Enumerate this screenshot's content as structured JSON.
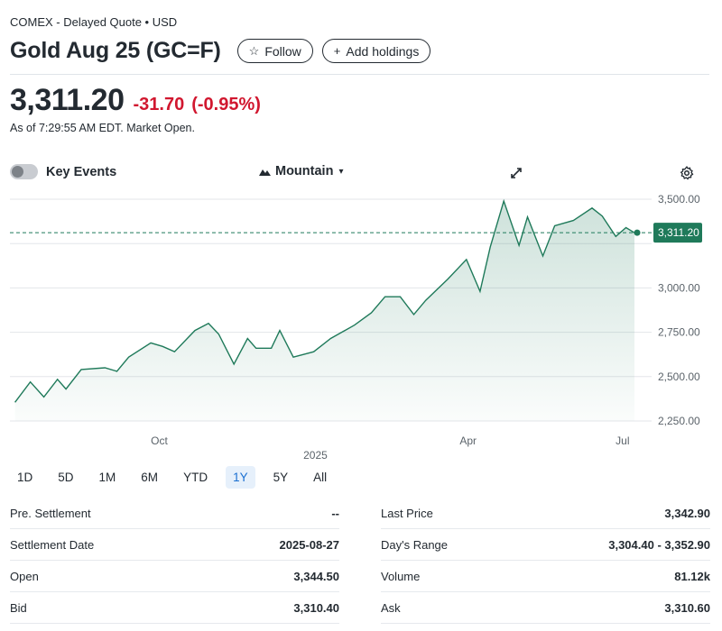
{
  "header": {
    "exchange": "COMEX - Delayed Quote • USD",
    "title": "Gold Aug 25 (GC=F)",
    "follow_label": "Follow",
    "add_holdings_label": "Add holdings"
  },
  "quote": {
    "price": "3,311.20",
    "change": "-31.70",
    "change_pct": "(-0.95%)",
    "as_of": "As of 7:29:55 AM EDT. Market Open."
  },
  "chart_toolbar": {
    "key_events_label": "Key Events",
    "chart_type_label": "Mountain"
  },
  "chart_data": {
    "type": "area",
    "ylim": [
      2250,
      3500
    ],
    "y_ticks": [
      "3,500.00",
      "3,000.00",
      "2,750.00",
      "2,500.00",
      "2,250.00"
    ],
    "x_ticks": [
      {
        "label": "Oct",
        "date": "2024-10-01"
      },
      {
        "label": "Apr",
        "date": "2025-04-01"
      },
      {
        "label": "Jul",
        "date": "2025-07-01"
      }
    ],
    "year_label": "2025",
    "current_label": "3,311.20",
    "current_value": 3311.2,
    "points": [
      [
        "2024-07-08",
        2355
      ],
      [
        "2024-07-17",
        2470
      ],
      [
        "2024-07-25",
        2385
      ],
      [
        "2024-08-02",
        2485
      ],
      [
        "2024-08-07",
        2430
      ],
      [
        "2024-08-16",
        2540
      ],
      [
        "2024-08-30",
        2550
      ],
      [
        "2024-09-06",
        2530
      ],
      [
        "2024-09-13",
        2610
      ],
      [
        "2024-09-26",
        2690
      ],
      [
        "2024-10-03",
        2670
      ],
      [
        "2024-10-10",
        2640
      ],
      [
        "2024-10-22",
        2760
      ],
      [
        "2024-10-30",
        2800
      ],
      [
        "2024-11-05",
        2740
      ],
      [
        "2024-11-14",
        2570
      ],
      [
        "2024-11-22",
        2715
      ],
      [
        "2024-11-27",
        2660
      ],
      [
        "2024-12-06",
        2660
      ],
      [
        "2024-12-11",
        2760
      ],
      [
        "2024-12-19",
        2610
      ],
      [
        "2024-12-31",
        2640
      ],
      [
        "2025-01-10",
        2715
      ],
      [
        "2025-01-24",
        2790
      ],
      [
        "2025-02-03",
        2860
      ],
      [
        "2025-02-11",
        2950
      ],
      [
        "2025-02-20",
        2950
      ],
      [
        "2025-02-28",
        2850
      ],
      [
        "2025-03-07",
        2930
      ],
      [
        "2025-03-20",
        3050
      ],
      [
        "2025-03-31",
        3160
      ],
      [
        "2025-04-08",
        2980
      ],
      [
        "2025-04-14",
        3230
      ],
      [
        "2025-04-22",
        3490
      ],
      [
        "2025-05-01",
        3240
      ],
      [
        "2025-05-06",
        3400
      ],
      [
        "2025-05-15",
        3180
      ],
      [
        "2025-05-22",
        3350
      ],
      [
        "2025-06-02",
        3380
      ],
      [
        "2025-06-13",
        3450
      ],
      [
        "2025-06-19",
        3405
      ],
      [
        "2025-06-27",
        3290
      ],
      [
        "2025-07-03",
        3340
      ],
      [
        "2025-07-08",
        3311
      ]
    ]
  },
  "range_options": [
    "1D",
    "5D",
    "1M",
    "6M",
    "YTD",
    "1Y",
    "5Y",
    "All"
  ],
  "range_selected": "1Y",
  "stats": {
    "left": [
      {
        "label": "Pre. Settlement",
        "value": "--"
      },
      {
        "label": "Settlement Date",
        "value": "2025-08-27"
      },
      {
        "label": "Open",
        "value": "3,344.50"
      },
      {
        "label": "Bid",
        "value": "3,310.40"
      }
    ],
    "right": [
      {
        "label": "Last Price",
        "value": "3,342.90"
      },
      {
        "label": "Day's Range",
        "value": "3,304.40 - 3,352.90"
      },
      {
        "label": "Volume",
        "value": "81.12k"
      },
      {
        "label": "Ask",
        "value": "3,310.60"
      }
    ]
  },
  "colors": {
    "line": "#1f7a5a",
    "negative": "#d1172f",
    "badge": "#1f7a5a",
    "active_range": "#1a6fd1"
  }
}
